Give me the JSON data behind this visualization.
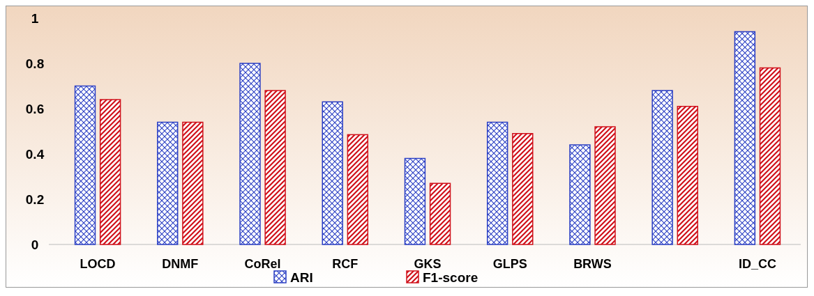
{
  "chart_data": {
    "type": "bar",
    "categories": [
      "LOCD",
      "DNMF",
      "CoRel",
      "RCF",
      "GKS",
      "GLPS",
      "BRWS",
      null,
      "ID_CC"
    ],
    "series": [
      {
        "name": "ARI",
        "color": "#2b3fc4",
        "values": [
          0.7,
          0.54,
          0.8,
          0.63,
          0.38,
          0.54,
          0.44,
          0.68,
          0.94
        ]
      },
      {
        "name": "F1-score",
        "color": "#d0101a",
        "values": [
          0.64,
          0.54,
          0.68,
          0.485,
          0.27,
          0.49,
          0.52,
          0.61,
          0.78
        ]
      }
    ],
    "ylim": [
      0,
      1
    ],
    "yticks": [
      0,
      0.2,
      0.4,
      0.6,
      0.8,
      1
    ],
    "legend": "bottom"
  }
}
